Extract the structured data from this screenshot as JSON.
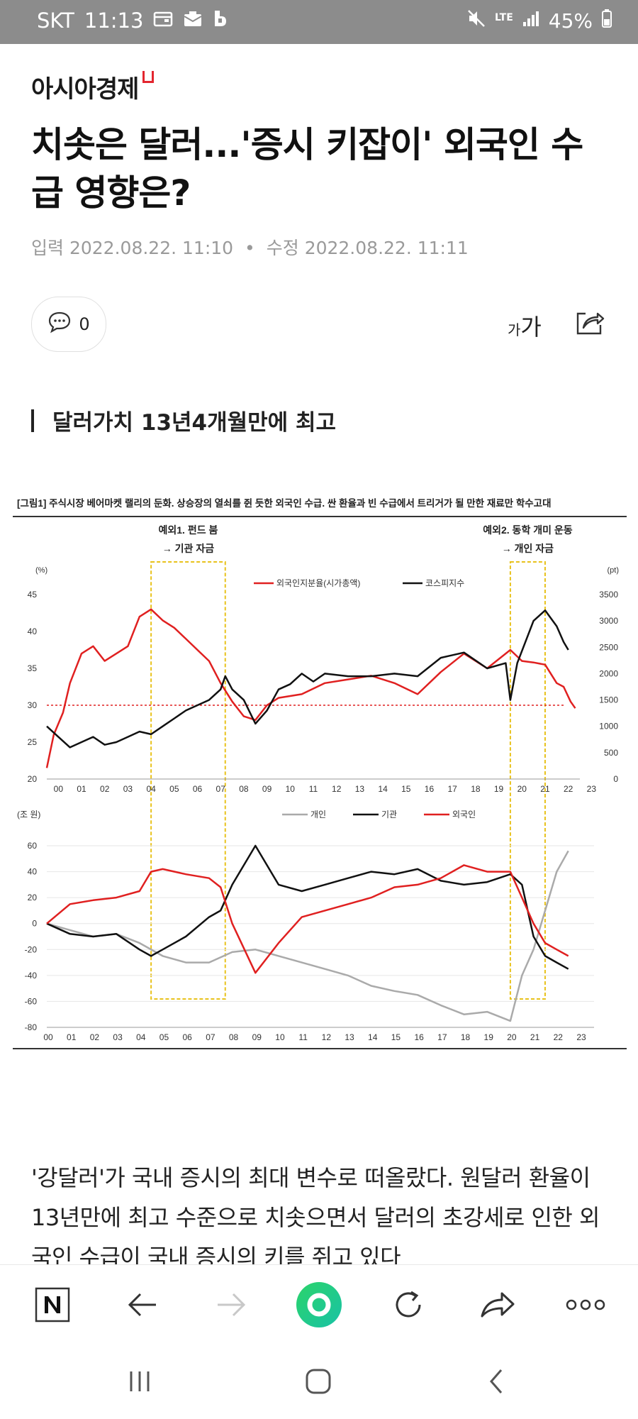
{
  "status_bar": {
    "carrier": "SKT",
    "time": "11:13",
    "network": "LTE",
    "battery": "45%"
  },
  "publisher": "아시아경제",
  "headline": "치솟은 달러...'증시 키잡이' 외국인 수급 영향은?",
  "meta": {
    "input_label": "입력",
    "input_time": "2022.08.22. 11:10",
    "edit_label": "수정",
    "edit_time": "2022.08.22. 11:11"
  },
  "comment_count": "0",
  "font_size_label_small": "가",
  "font_size_label_large": "가",
  "subheading": "달러가치 13년4개월만에 최고",
  "chart_data": [
    {
      "type": "line",
      "title": "[그림1] 주식시장 베어마켓 랠리의 둔화. 상승장의 열쇠를 쥔 듯한 외국인 수급. 싼 환율과 빈 수급에서 트리거가 될 만한 재료만 학수고대",
      "annotations": [
        {
          "lines": [
            "예외1. 펀드 붐",
            "→ 기관 자금"
          ],
          "span": [
            4.5,
            7.7
          ]
        },
        {
          "lines": [
            "예외2. 동학 개미 운동",
            "→ 개인 자금"
          ],
          "span": [
            20.0,
            21.5
          ]
        }
      ],
      "y_unit_left": "(%)",
      "y_unit_right": "(pt)",
      "x_ticks": [
        "00",
        "01",
        "02",
        "03",
        "04",
        "05",
        "06",
        "07",
        "08",
        "09",
        "10",
        "11",
        "12",
        "13",
        "14",
        "15",
        "16",
        "17",
        "18",
        "19",
        "20",
        "21",
        "22",
        "23"
      ],
      "y_ticks_left": [
        20,
        25,
        30,
        35,
        40,
        45
      ],
      "y_ticks_right": [
        0,
        500,
        1000,
        1500,
        2000,
        2500,
        3000,
        3500
      ],
      "reference_line_left": 30,
      "ylim_left": [
        20,
        45
      ],
      "ylim_right": [
        0,
        3500
      ],
      "series": [
        {
          "name": "외국인지분율(시가총액)",
          "axis": "left",
          "color": "#e02020",
          "points": [
            [
              0,
              21.5
            ],
            [
              0.3,
              26
            ],
            [
              0.7,
              29
            ],
            [
              1,
              33
            ],
            [
              1.5,
              37
            ],
            [
              2,
              38
            ],
            [
              2.5,
              36
            ],
            [
              3,
              37
            ],
            [
              3.5,
              38
            ],
            [
              4,
              42
            ],
            [
              4.5,
              43
            ],
            [
              5,
              41.5
            ],
            [
              5.5,
              40.5
            ],
            [
              6,
              39
            ],
            [
              6.5,
              37.5
            ],
            [
              7,
              36
            ],
            [
              7.5,
              33
            ],
            [
              8,
              30.5
            ],
            [
              8.5,
              28.5
            ],
            [
              9,
              28
            ],
            [
              9.5,
              30
            ],
            [
              10,
              31
            ],
            [
              11,
              31.5
            ],
            [
              12,
              33
            ],
            [
              13,
              33.5
            ],
            [
              14,
              34
            ],
            [
              15,
              33
            ],
            [
              16,
              31.5
            ],
            [
              17,
              34.5
            ],
            [
              18,
              37
            ],
            [
              19,
              35
            ],
            [
              20,
              37.5
            ],
            [
              20.5,
              36
            ],
            [
              21,
              35.8
            ],
            [
              21.5,
              35.5
            ],
            [
              22,
              33
            ],
            [
              22.3,
              32.5
            ],
            [
              22.6,
              30.5
            ],
            [
              22.8,
              29.6
            ]
          ]
        },
        {
          "name": "코스피지수",
          "axis": "right",
          "color": "#111111",
          "points": [
            [
              0,
              1000
            ],
            [
              0.5,
              800
            ],
            [
              1,
              600
            ],
            [
              1.5,
              700
            ],
            [
              2,
              800
            ],
            [
              2.5,
              650
            ],
            [
              3,
              700
            ],
            [
              3.5,
              800
            ],
            [
              4,
              900
            ],
            [
              4.5,
              850
            ],
            [
              5,
              1000
            ],
            [
              5.5,
              1150
            ],
            [
              6,
              1300
            ],
            [
              6.5,
              1400
            ],
            [
              7,
              1500
            ],
            [
              7.5,
              1700
            ],
            [
              7.7,
              1950
            ],
            [
              8,
              1700
            ],
            [
              8.5,
              1500
            ],
            [
              9,
              1050
            ],
            [
              9.5,
              1300
            ],
            [
              10,
              1700
            ],
            [
              10.5,
              1800
            ],
            [
              11,
              2000
            ],
            [
              11.5,
              1850
            ],
            [
              12,
              2000
            ],
            [
              13,
              1950
            ],
            [
              14,
              1950
            ],
            [
              15,
              2000
            ],
            [
              16,
              1950
            ],
            [
              17,
              2300
            ],
            [
              18,
              2400
            ],
            [
              19,
              2100
            ],
            [
              19.8,
              2200
            ],
            [
              20,
              1500
            ],
            [
              20.3,
              2200
            ],
            [
              21,
              3000
            ],
            [
              21.5,
              3200
            ],
            [
              22,
              2900
            ],
            [
              22.3,
              2600
            ],
            [
              22.5,
              2450
            ]
          ]
        }
      ]
    },
    {
      "type": "line",
      "y_unit": "(조 원)",
      "x_ticks": [
        "00",
        "01",
        "02",
        "03",
        "04",
        "05",
        "06",
        "07",
        "08",
        "09",
        "10",
        "11",
        "12",
        "13",
        "14",
        "15",
        "16",
        "17",
        "18",
        "19",
        "20",
        "21",
        "22",
        "23"
      ],
      "y_ticks": [
        -80,
        -60,
        -40,
        -20,
        0,
        20,
        40,
        60
      ],
      "ylim": [
        -80,
        60
      ],
      "series": [
        {
          "name": "개인",
          "color": "#aaaaaa",
          "points": [
            [
              0,
              0
            ],
            [
              1,
              -5
            ],
            [
              2,
              -10
            ],
            [
              3,
              -8
            ],
            [
              4,
              -15
            ],
            [
              5,
              -25
            ],
            [
              6,
              -30
            ],
            [
              7,
              -30
            ],
            [
              8,
              -22
            ],
            [
              9,
              -20
            ],
            [
              10,
              -25
            ],
            [
              11,
              -30
            ],
            [
              12,
              -35
            ],
            [
              13,
              -40
            ],
            [
              14,
              -48
            ],
            [
              15,
              -52
            ],
            [
              16,
              -55
            ],
            [
              17,
              -63
            ],
            [
              18,
              -70
            ],
            [
              19,
              -68
            ],
            [
              20,
              -75
            ],
            [
              20.5,
              -40
            ],
            [
              21,
              -20
            ],
            [
              21.5,
              10
            ],
            [
              22,
              40
            ],
            [
              22.5,
              56
            ]
          ]
        },
        {
          "name": "기관",
          "color": "#111111",
          "points": [
            [
              0,
              0
            ],
            [
              1,
              -8
            ],
            [
              2,
              -10
            ],
            [
              3,
              -8
            ],
            [
              4,
              -20
            ],
            [
              4.5,
              -25
            ],
            [
              5,
              -20
            ],
            [
              6,
              -10
            ],
            [
              7,
              5
            ],
            [
              7.5,
              10
            ],
            [
              8,
              30
            ],
            [
              9,
              60
            ],
            [
              9.5,
              45
            ],
            [
              10,
              30
            ],
            [
              11,
              25
            ],
            [
              12,
              30
            ],
            [
              13,
              35
            ],
            [
              14,
              40
            ],
            [
              15,
              38
            ],
            [
              16,
              42
            ],
            [
              17,
              33
            ],
            [
              18,
              30
            ],
            [
              19,
              32
            ],
            [
              20,
              38
            ],
            [
              20.5,
              30
            ],
            [
              21,
              -10
            ],
            [
              21.5,
              -25
            ],
            [
              22,
              -30
            ],
            [
              22.5,
              -35
            ]
          ]
        },
        {
          "name": "외국인",
          "color": "#e02020",
          "points": [
            [
              0,
              0
            ],
            [
              1,
              15
            ],
            [
              2,
              18
            ],
            [
              3,
              20
            ],
            [
              4,
              25
            ],
            [
              4.5,
              40
            ],
            [
              5,
              42
            ],
            [
              6,
              38
            ],
            [
              7,
              35
            ],
            [
              7.5,
              28
            ],
            [
              8,
              0
            ],
            [
              9,
              -38
            ],
            [
              10,
              -15
            ],
            [
              11,
              5
            ],
            [
              12,
              10
            ],
            [
              13,
              15
            ],
            [
              14,
              20
            ],
            [
              15,
              28
            ],
            [
              16,
              30
            ],
            [
              17,
              35
            ],
            [
              18,
              45
            ],
            [
              19,
              40
            ],
            [
              20,
              40
            ],
            [
              20.5,
              20
            ],
            [
              21,
              0
            ],
            [
              21.5,
              -15
            ],
            [
              22,
              -20
            ],
            [
              22.5,
              -25
            ]
          ]
        }
      ]
    }
  ],
  "article_body": "'강달러'가 국내 증시의 최대 변수로 떠올랐다. 원달러 환율이 13년만에 최고 수준으로 치솟으면서 달러의 초강세로 인한 외국인 수급이 국내 증시의 키를 쥐고 있다"
}
